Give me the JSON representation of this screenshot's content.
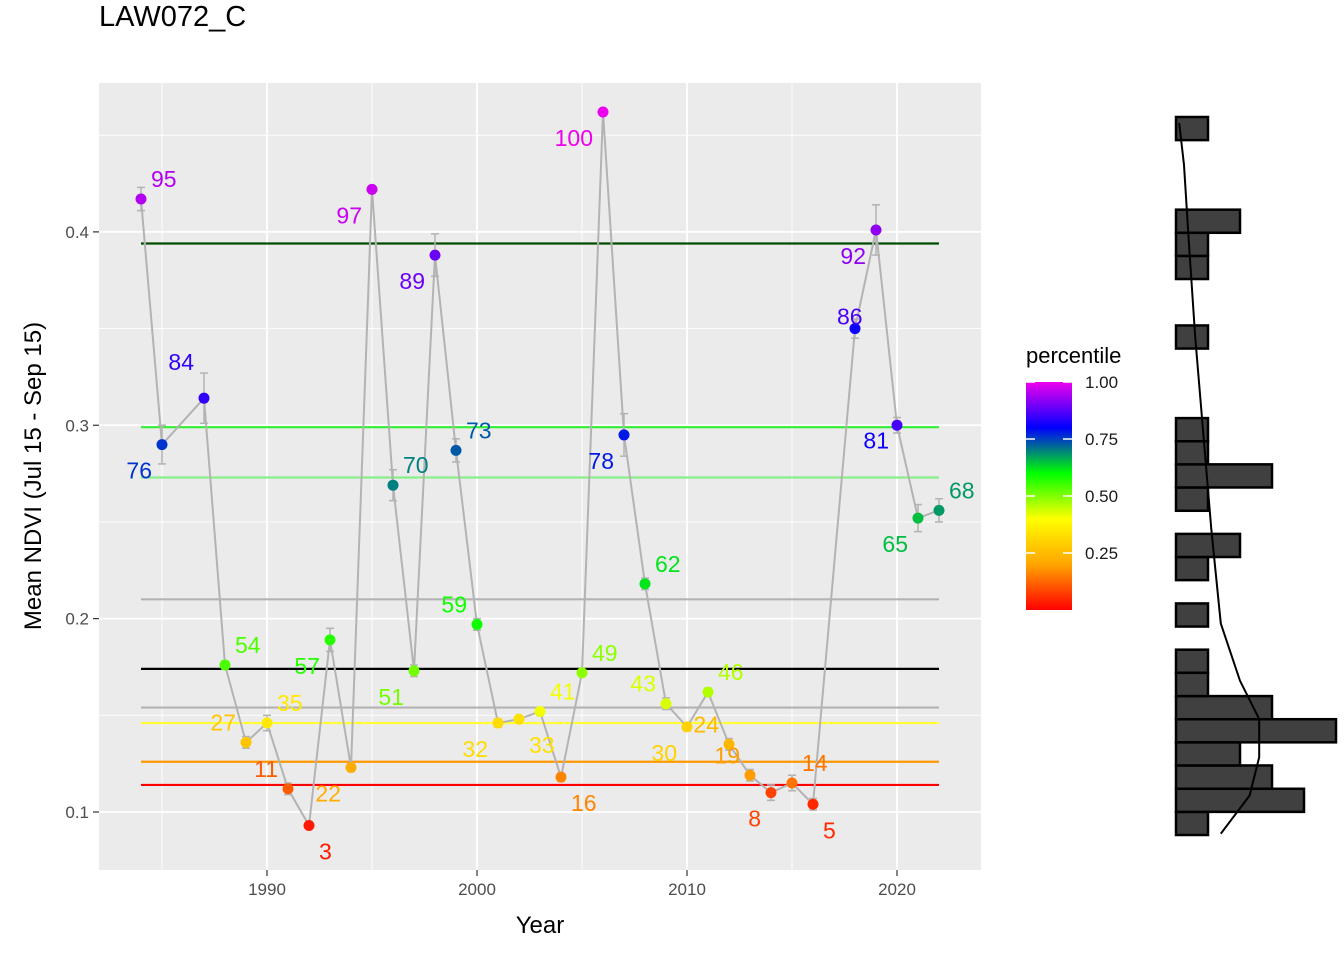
{
  "chart_data": {
    "type": "scatter",
    "title": "LAW072_C",
    "xlabel": "Year",
    "ylabel": "Mean NDVI (Jul 15 - Sep 15)",
    "xlim": [
      1982,
      2024
    ],
    "ylim": [
      0.07,
      0.477
    ],
    "x_ticks": [
      1990,
      2000,
      2010,
      2020
    ],
    "y_ticks": [
      0.1,
      0.2,
      0.3,
      0.4
    ],
    "x_tick_labels": [
      "1990",
      "2000",
      "2010",
      "2020"
    ],
    "y_tick_labels": [
      "0.1",
      "0.2",
      "0.3",
      "0.4"
    ],
    "grid": true,
    "line_color": "#b3b3b3",
    "points": [
      {
        "year": 1984,
        "ndvi": 0.417,
        "err": 0.006,
        "percentile": 0.95,
        "label": "95",
        "pos": "ur"
      },
      {
        "year": 1985,
        "ndvi": 0.29,
        "err": 0.01,
        "percentile": 0.76,
        "label": "76",
        "pos": "ll"
      },
      {
        "year": 1987,
        "ndvi": 0.314,
        "err": 0.013,
        "percentile": 0.84,
        "label": "84",
        "pos": "left-far"
      },
      {
        "year": 1988,
        "ndvi": 0.176,
        "err": 0.002,
        "percentile": 0.54,
        "label": "54",
        "pos": "ur"
      },
      {
        "year": 1989,
        "ndvi": 0.136,
        "err": 0.003,
        "percentile": 0.27,
        "label": "27",
        "pos": "ul"
      },
      {
        "year": 1990,
        "ndvi": 0.146,
        "err": 0.004,
        "percentile": 0.35,
        "label": "35",
        "pos": "ur"
      },
      {
        "year": 1991,
        "ndvi": 0.112,
        "err": 0.003,
        "percentile": 0.11,
        "label": "11",
        "pos": "ul"
      },
      {
        "year": 1992,
        "ndvi": 0.093,
        "err": 0.001,
        "percentile": 0.03,
        "label": "3",
        "pos": "lr"
      },
      {
        "year": 1993,
        "ndvi": 0.189,
        "err": 0.006,
        "percentile": 0.57,
        "label": "57",
        "pos": "ll"
      },
      {
        "year": 1994,
        "ndvi": 0.123,
        "err": 0.002,
        "percentile": 0.22,
        "label": "22",
        "pos": "ll"
      },
      {
        "year": 1995,
        "ndvi": 0.422,
        "err": 0.001,
        "percentile": 0.97,
        "label": "97",
        "pos": "ll"
      },
      {
        "year": 1996,
        "ndvi": 0.269,
        "err": 0.008,
        "percentile": 0.7,
        "label": "70",
        "pos": "ur"
      },
      {
        "year": 1997,
        "ndvi": 0.173,
        "err": 0.003,
        "percentile": 0.51,
        "label": "51",
        "pos": "ll"
      },
      {
        "year": 1998,
        "ndvi": 0.388,
        "err": 0.011,
        "percentile": 0.89,
        "label": "89",
        "pos": "ll"
      },
      {
        "year": 1999,
        "ndvi": 0.287,
        "err": 0.006,
        "percentile": 0.73,
        "label": "73",
        "pos": "ur"
      },
      {
        "year": 2000,
        "ndvi": 0.197,
        "err": 0.003,
        "percentile": 0.59,
        "label": "59",
        "pos": "ul"
      },
      {
        "year": 2001,
        "ndvi": 0.146,
        "err": 0.002,
        "percentile": 0.32,
        "label": "32",
        "pos": "ll"
      },
      {
        "year": 2002,
        "ndvi": 0.148,
        "err": 0.001,
        "percentile": 0.33,
        "label": "33",
        "pos": "lr"
      },
      {
        "year": 2003,
        "ndvi": 0.152,
        "err": 0.002,
        "percentile": 0.41,
        "label": "41",
        "pos": "ur"
      },
      {
        "year": 2004,
        "ndvi": 0.118,
        "err": 0.002,
        "percentile": 0.16,
        "label": "16",
        "pos": "lr"
      },
      {
        "year": 2005,
        "ndvi": 0.172,
        "err": 0.001,
        "percentile": 0.49,
        "label": "49",
        "pos": "ur"
      },
      {
        "year": 2006,
        "ndvi": 0.462,
        "err": 0.001,
        "percentile": 1.0,
        "label": "100",
        "pos": "ll"
      },
      {
        "year": 2007,
        "ndvi": 0.295,
        "err": 0.011,
        "percentile": 0.78,
        "label": "78",
        "pos": "ll"
      },
      {
        "year": 2008,
        "ndvi": 0.218,
        "err": 0.003,
        "percentile": 0.62,
        "label": "62",
        "pos": "ur"
      },
      {
        "year": 2009,
        "ndvi": 0.156,
        "err": 0.003,
        "percentile": 0.43,
        "label": "43",
        "pos": "ul"
      },
      {
        "year": 2010,
        "ndvi": 0.144,
        "err": 0.002,
        "percentile": 0.3,
        "label": "30",
        "pos": "ll"
      },
      {
        "year": 2011,
        "ndvi": 0.162,
        "err": 0.002,
        "percentile": 0.46,
        "label": "46",
        "pos": "ur"
      },
      {
        "year": 2012,
        "ndvi": 0.135,
        "err": 0.003,
        "percentile": 0.24,
        "label": "24",
        "pos": "ul"
      },
      {
        "year": 2013,
        "ndvi": 0.119,
        "err": 0.003,
        "percentile": 0.19,
        "label": "19",
        "pos": "ul"
      },
      {
        "year": 2014,
        "ndvi": 0.11,
        "err": 0.004,
        "percentile": 0.08,
        "label": "8",
        "pos": "ll"
      },
      {
        "year": 2015,
        "ndvi": 0.115,
        "err": 0.004,
        "percentile": 0.14,
        "label": "14",
        "pos": "ur"
      },
      {
        "year": 2016,
        "ndvi": 0.104,
        "err": 0.003,
        "percentile": 0.05,
        "label": "5",
        "pos": "lr"
      },
      {
        "year": 2018,
        "ndvi": 0.35,
        "err": 0.005,
        "percentile": 0.81,
        "label": "81",
        "pos": "far-down"
      },
      {
        "year": 2019,
        "ndvi": 0.401,
        "err": 0.013,
        "percentile": 0.92,
        "label": "92",
        "pos": "ll"
      },
      {
        "year": 2020,
        "ndvi": 0.3,
        "err": 0.004,
        "percentile": 0.86,
        "label": "86",
        "pos": "far-up"
      },
      {
        "year": 2021,
        "ndvi": 0.252,
        "err": 0.007,
        "percentile": 0.65,
        "label": "65",
        "pos": "ll"
      },
      {
        "year": 2022,
        "ndvi": 0.256,
        "err": 0.006,
        "percentile": 0.68,
        "label": "68",
        "pos": "ur"
      }
    ],
    "reference_lines": [
      {
        "value": 0.394,
        "color": "#004c00"
      },
      {
        "value": 0.299,
        "color": "#33ee33"
      },
      {
        "value": 0.273,
        "color": "#88ee88"
      },
      {
        "value": 0.21,
        "color": "#b3b3b3"
      },
      {
        "value": 0.174,
        "color": "#000000"
      },
      {
        "value": 0.154,
        "color": "#b3b3b3"
      },
      {
        "value": 0.146,
        "color": "#ffff33"
      },
      {
        "value": 0.126,
        "color": "#ff9900"
      },
      {
        "value": 0.114,
        "color": "#ff0000"
      }
    ],
    "legend": {
      "title": "percentile",
      "position": "right",
      "ticks": [
        1.0,
        0.75,
        0.5,
        0.25
      ],
      "tick_labels": [
        "1.00",
        "0.75",
        "0.50",
        "0.25"
      ],
      "colors": [
        "#ff0000",
        "#ffa500",
        "#ffff00",
        "#00ff00",
        "#0000ff",
        "#ee00ee"
      ],
      "range": [
        0.0,
        1.0
      ]
    },
    "histogram": {
      "orientation": "horizontal",
      "bin_edges": [
        0.0893,
        0.1014,
        0.1135,
        0.1257,
        0.1378,
        0.1499,
        0.162,
        0.1742,
        0.1863,
        0.1984,
        0.2105,
        0.2227,
        0.2348,
        0.2469,
        0.259,
        0.2712,
        0.2833,
        0.2954,
        0.3075,
        0.3196,
        0.3318,
        0.3439,
        0.356,
        0.3681,
        0.3803,
        0.3924,
        0.4045,
        0.4166,
        0.4288,
        0.4409,
        0.453,
        0.4651
      ],
      "counts": [
        1,
        4,
        3,
        2,
        5,
        3,
        1,
        1,
        0,
        1,
        0,
        1,
        2,
        0,
        1,
        3,
        1,
        1,
        0,
        0,
        0,
        1,
        0,
        0,
        1,
        1,
        2,
        0,
        0,
        0,
        1
      ],
      "bar_color": "#404040",
      "density_curve": [
        [
          0.09,
          1.4
        ],
        [
          0.11,
          2.3
        ],
        [
          0.13,
          2.6
        ],
        [
          0.15,
          2.6
        ],
        [
          0.17,
          2.0
        ],
        [
          0.2,
          1.4
        ],
        [
          0.25,
          1.1
        ],
        [
          0.3,
          0.85
        ],
        [
          0.35,
          0.6
        ],
        [
          0.4,
          0.4
        ],
        [
          0.44,
          0.25
        ],
        [
          0.462,
          0.1
        ]
      ]
    }
  }
}
